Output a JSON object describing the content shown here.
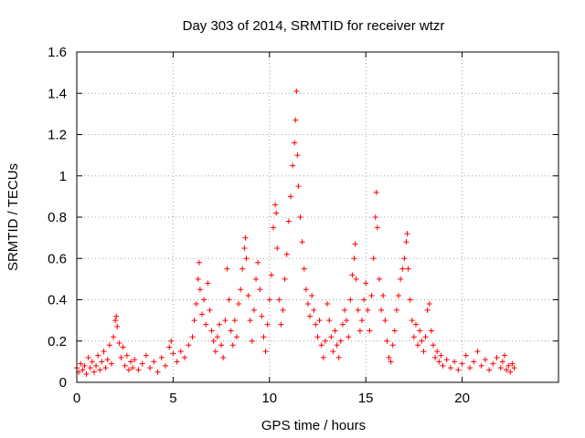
{
  "colors": {
    "series": "#ff0000",
    "background": "#ffffff",
    "axes": "#000000",
    "grid": "#a0a0a0"
  },
  "chart_data": {
    "type": "scatter",
    "title": "Day 303 of 2014, SRMTID for receiver wtzr",
    "xlabel": "GPS time / hours",
    "ylabel": "SRMTID / TECUs",
    "xlim": [
      0,
      25
    ],
    "ylim": [
      0,
      1.6
    ],
    "xticks": [
      0,
      5,
      10,
      15,
      20
    ],
    "xtick_labels": [
      "0",
      "5",
      "10",
      "15",
      "20"
    ],
    "yticks": [
      0,
      0.2,
      0.4,
      0.6,
      0.8,
      1,
      1.2,
      1.4,
      1.6
    ],
    "ytick_labels": [
      "0",
      "0.2",
      "0.4",
      "0.6",
      "0.8",
      "1",
      "1.2",
      "1.4",
      "1.6"
    ],
    "grid": true,
    "marker": "plus",
    "series": [
      {
        "name": "wtzr",
        "points": [
          [
            0.0,
            0.07
          ],
          [
            0.1,
            0.05
          ],
          [
            0.2,
            0.09
          ],
          [
            0.3,
            0.06
          ],
          [
            0.4,
            0.08
          ],
          [
            0.5,
            0.04
          ],
          [
            0.6,
            0.12
          ],
          [
            0.7,
            0.07
          ],
          [
            0.8,
            0.1
          ],
          [
            0.9,
            0.05
          ],
          [
            1.0,
            0.08
          ],
          [
            1.1,
            0.13
          ],
          [
            1.2,
            0.06
          ],
          [
            1.3,
            0.1
          ],
          [
            1.4,
            0.15
          ],
          [
            1.5,
            0.07
          ],
          [
            1.6,
            0.11
          ],
          [
            1.7,
            0.18
          ],
          [
            1.8,
            0.09
          ],
          [
            1.9,
            0.22
          ],
          [
            2.0,
            0.3
          ],
          [
            2.05,
            0.32
          ],
          [
            2.1,
            0.27
          ],
          [
            2.2,
            0.19
          ],
          [
            2.3,
            0.12
          ],
          [
            2.4,
            0.17
          ],
          [
            2.5,
            0.08
          ],
          [
            2.6,
            0.13
          ],
          [
            2.7,
            0.06
          ],
          [
            2.8,
            0.1
          ],
          [
            2.9,
            0.07
          ],
          [
            3.0,
            0.11
          ],
          [
            3.2,
            0.06
          ],
          [
            3.4,
            0.09
          ],
          [
            3.6,
            0.13
          ],
          [
            3.8,
            0.07
          ],
          [
            4.0,
            0.1
          ],
          [
            4.2,
            0.05
          ],
          [
            4.4,
            0.12
          ],
          [
            4.6,
            0.08
          ],
          [
            4.8,
            0.17
          ],
          [
            4.9,
            0.2
          ],
          [
            5.0,
            0.14
          ],
          [
            5.2,
            0.1
          ],
          [
            5.4,
            0.15
          ],
          [
            5.6,
            0.12
          ],
          [
            5.8,
            0.18
          ],
          [
            6.0,
            0.22
          ],
          [
            6.1,
            0.3
          ],
          [
            6.2,
            0.38
          ],
          [
            6.3,
            0.5
          ],
          [
            6.35,
            0.58
          ],
          [
            6.4,
            0.45
          ],
          [
            6.5,
            0.33
          ],
          [
            6.6,
            0.4
          ],
          [
            6.7,
            0.28
          ],
          [
            6.8,
            0.48
          ],
          [
            6.9,
            0.35
          ],
          [
            7.0,
            0.25
          ],
          [
            7.1,
            0.2
          ],
          [
            7.2,
            0.15
          ],
          [
            7.3,
            0.22
          ],
          [
            7.4,
            0.28
          ],
          [
            7.5,
            0.18
          ],
          [
            7.6,
            0.12
          ],
          [
            7.7,
            0.3
          ],
          [
            7.8,
            0.55
          ],
          [
            7.9,
            0.4
          ],
          [
            8.0,
            0.25
          ],
          [
            8.1,
            0.18
          ],
          [
            8.2,
            0.3
          ],
          [
            8.3,
            0.22
          ],
          [
            8.4,
            0.38
          ],
          [
            8.5,
            0.45
          ],
          [
            8.6,
            0.55
          ],
          [
            8.7,
            0.65
          ],
          [
            8.75,
            0.7
          ],
          [
            8.8,
            0.6
          ],
          [
            8.9,
            0.42
          ],
          [
            9.0,
            0.3
          ],
          [
            9.1,
            0.2
          ],
          [
            9.2,
            0.35
          ],
          [
            9.3,
            0.5
          ],
          [
            9.4,
            0.58
          ],
          [
            9.5,
            0.45
          ],
          [
            9.6,
            0.32
          ],
          [
            9.7,
            0.22
          ],
          [
            9.8,
            0.15
          ],
          [
            9.9,
            0.28
          ],
          [
            10.0,
            0.4
          ],
          [
            10.1,
            0.52
          ],
          [
            10.2,
            0.75
          ],
          [
            10.3,
            0.86
          ],
          [
            10.35,
            0.82
          ],
          [
            10.4,
            0.65
          ],
          [
            10.5,
            0.4
          ],
          [
            10.6,
            0.28
          ],
          [
            10.7,
            0.35
          ],
          [
            10.8,
            0.5
          ],
          [
            10.9,
            0.62
          ],
          [
            11.0,
            0.78
          ],
          [
            11.1,
            0.9
          ],
          [
            11.2,
            1.05
          ],
          [
            11.3,
            1.16
          ],
          [
            11.35,
            1.27
          ],
          [
            11.4,
            1.41
          ],
          [
            11.45,
            1.1
          ],
          [
            11.5,
            0.95
          ],
          [
            11.6,
            0.8
          ],
          [
            11.7,
            0.68
          ],
          [
            11.8,
            0.55
          ],
          [
            11.9,
            0.45
          ],
          [
            12.0,
            0.38
          ],
          [
            12.1,
            0.32
          ],
          [
            12.2,
            0.42
          ],
          [
            12.3,
            0.35
          ],
          [
            12.4,
            0.28
          ],
          [
            12.5,
            0.22
          ],
          [
            12.6,
            0.3
          ],
          [
            12.7,
            0.18
          ],
          [
            12.8,
            0.12
          ],
          [
            12.9,
            0.2
          ],
          [
            13.0,
            0.38
          ],
          [
            13.1,
            0.3
          ],
          [
            13.2,
            0.22
          ],
          [
            13.3,
            0.15
          ],
          [
            13.4,
            0.25
          ],
          [
            13.5,
            0.18
          ],
          [
            13.6,
            0.12
          ],
          [
            13.7,
            0.2
          ],
          [
            13.8,
            0.28
          ],
          [
            13.9,
            0.35
          ],
          [
            14.0,
            0.3
          ],
          [
            14.1,
            0.22
          ],
          [
            14.2,
            0.4
          ],
          [
            14.3,
            0.52
          ],
          [
            14.4,
            0.6
          ],
          [
            14.45,
            0.67
          ],
          [
            14.5,
            0.5
          ],
          [
            14.6,
            0.35
          ],
          [
            14.7,
            0.25
          ],
          [
            14.8,
            0.3
          ],
          [
            14.9,
            0.4
          ],
          [
            15.0,
            0.48
          ],
          [
            15.1,
            0.35
          ],
          [
            15.2,
            0.25
          ],
          [
            15.3,
            0.42
          ],
          [
            15.4,
            0.6
          ],
          [
            15.5,
            0.8
          ],
          [
            15.55,
            0.92
          ],
          [
            15.6,
            0.75
          ],
          [
            15.7,
            0.5
          ],
          [
            15.8,
            0.35
          ],
          [
            15.9,
            0.42
          ],
          [
            16.0,
            0.3
          ],
          [
            16.1,
            0.2
          ],
          [
            16.2,
            0.12
          ],
          [
            16.3,
            0.1
          ],
          [
            16.4,
            0.18
          ],
          [
            16.5,
            0.25
          ],
          [
            16.6,
            0.35
          ],
          [
            16.7,
            0.42
          ],
          [
            16.8,
            0.5
          ],
          [
            16.9,
            0.55
          ],
          [
            17.0,
            0.6
          ],
          [
            17.1,
            0.68
          ],
          [
            17.15,
            0.72
          ],
          [
            17.2,
            0.55
          ],
          [
            17.3,
            0.4
          ],
          [
            17.4,
            0.3
          ],
          [
            17.5,
            0.22
          ],
          [
            17.6,
            0.28
          ],
          [
            17.7,
            0.18
          ],
          [
            17.8,
            0.25
          ],
          [
            17.9,
            0.2
          ],
          [
            18.0,
            0.15
          ],
          [
            18.1,
            0.22
          ],
          [
            18.2,
            0.35
          ],
          [
            18.3,
            0.38
          ],
          [
            18.4,
            0.25
          ],
          [
            18.5,
            0.18
          ],
          [
            18.6,
            0.12
          ],
          [
            18.7,
            0.15
          ],
          [
            18.8,
            0.1
          ],
          [
            18.9,
            0.13
          ],
          [
            19.0,
            0.08
          ],
          [
            19.2,
            0.11
          ],
          [
            19.4,
            0.07
          ],
          [
            19.6,
            0.1
          ],
          [
            19.8,
            0.06
          ],
          [
            20.0,
            0.09
          ],
          [
            20.2,
            0.13
          ],
          [
            20.4,
            0.07
          ],
          [
            20.6,
            0.1
          ],
          [
            20.8,
            0.15
          ],
          [
            21.0,
            0.08
          ],
          [
            21.2,
            0.11
          ],
          [
            21.4,
            0.06
          ],
          [
            21.6,
            0.09
          ],
          [
            21.8,
            0.12
          ],
          [
            22.0,
            0.07
          ],
          [
            22.1,
            0.1
          ],
          [
            22.2,
            0.13
          ],
          [
            22.3,
            0.06
          ],
          [
            22.4,
            0.08
          ],
          [
            22.5,
            0.05
          ],
          [
            22.6,
            0.09
          ],
          [
            22.7,
            0.07
          ]
        ]
      }
    ]
  }
}
